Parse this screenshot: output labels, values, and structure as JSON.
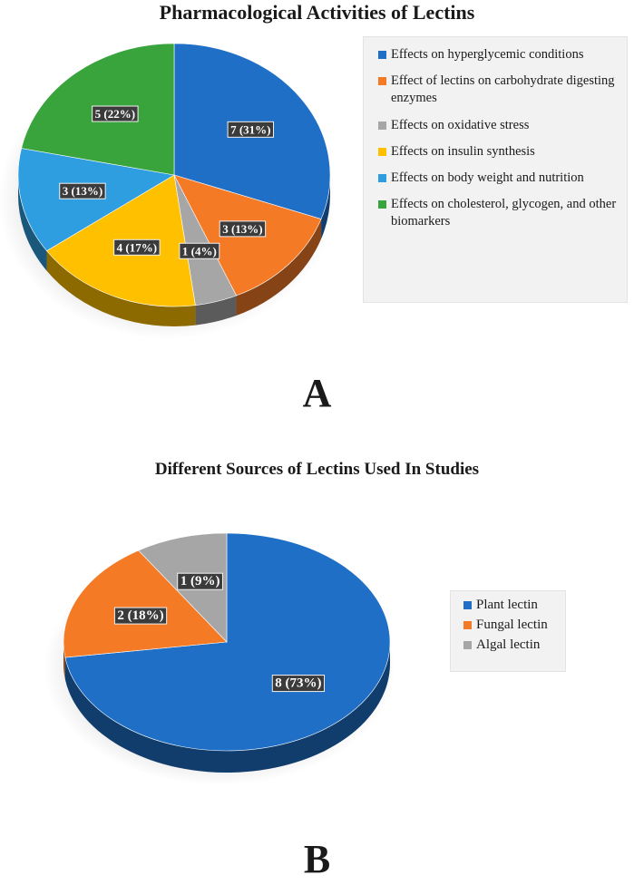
{
  "chart_data": [
    {
      "type": "pie",
      "title": "Pharmacological Activities of Lectins",
      "panel_label": "A",
      "legend_position": "right",
      "three_d": true,
      "slices": [
        {
          "label": "Effects on hyperglycemic conditions",
          "value": 7,
          "data_label": "7 (31%)",
          "color": "#1f6fc6"
        },
        {
          "label": "Effect of lectins on carbohydrate digesting enzymes",
          "value": 3,
          "data_label": "3 (13%)",
          "color": "#f47a26"
        },
        {
          "label": "Effects on oxidative stress",
          "value": 1,
          "data_label": "1 (4%)",
          "color": "#a6a6a6"
        },
        {
          "label": "Effects on insulin synthesis",
          "value": 4,
          "data_label": "4 (17%)",
          "color": "#ffc000"
        },
        {
          "label": "Effects on body weight and nutrition",
          "value": 3,
          "data_label": "3 (13%)",
          "color": "#2e9ee0"
        },
        {
          "label": "Effects on cholesterol, glycogen, and other biomarkers",
          "value": 5,
          "data_label": "5 (22%)",
          "color": "#3aa43c"
        }
      ]
    },
    {
      "type": "pie",
      "title": "Different Sources of Lectins Used In Studies",
      "panel_label": "B",
      "legend_position": "right",
      "three_d": true,
      "slices": [
        {
          "label": "Plant lectin",
          "value": 8,
          "data_label": "8 (73%)",
          "color": "#1f6fc6"
        },
        {
          "label": "Fungal lectin",
          "value": 2,
          "data_label": "2 (18%)",
          "color": "#f47a26"
        },
        {
          "label": "Algal lectin",
          "value": 1,
          "data_label": "1 (9%)",
          "color": "#a6a6a6"
        }
      ]
    }
  ]
}
